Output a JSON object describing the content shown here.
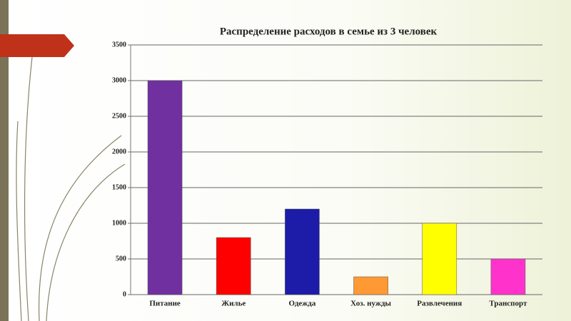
{
  "chart_data": {
    "type": "bar",
    "title": "Распределение расходов в семье из 3 человек",
    "categories": [
      "Питание",
      "Жилье",
      "Одежда",
      "Хоз. нужды",
      "Развлечения",
      "Транспорт"
    ],
    "values": [
      3000,
      800,
      1200,
      250,
      1000,
      500
    ],
    "colors": [
      "#7030a0",
      "#ff0000",
      "#1c1ca8",
      "#ff9933",
      "#ffff00",
      "#ff33cc"
    ],
    "ylim": [
      0,
      3500
    ],
    "yticks": [
      0,
      500,
      1000,
      1500,
      2000,
      2500,
      3000,
      3500
    ],
    "grid": true
  }
}
